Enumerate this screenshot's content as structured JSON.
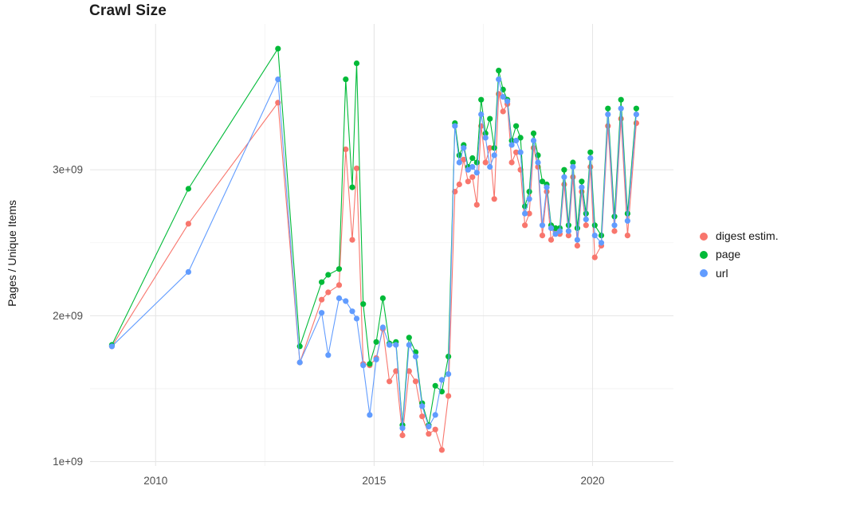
{
  "chart_data": {
    "type": "line",
    "title": "Crawl Size",
    "xlabel": "",
    "ylabel": "Pages / Unique Items",
    "grid": true,
    "legend_position": "right",
    "xlim": [
      2008.5,
      2021.85
    ],
    "ylim": [
      970000000.0,
      4000000000.0
    ],
    "x_ticks": [
      {
        "value": 2010,
        "label": "2010"
      },
      {
        "value": 2015,
        "label": "2015"
      },
      {
        "value": 2020,
        "label": "2020"
      }
    ],
    "x_minor_ticks": [
      2012.5,
      2017.5
    ],
    "y_ticks": [
      {
        "value": 1000000000.0,
        "label": "1e+09"
      },
      {
        "value": 2000000000.0,
        "label": "2e+09"
      },
      {
        "value": 3000000000.0,
        "label": "3e+09"
      }
    ],
    "y_minor_ticks": [
      1500000000.0,
      2500000000.0,
      3500000000.0
    ],
    "style": {
      "grid_major_color": "#e4e4e4",
      "grid_minor_color": "#f2f2f2",
      "tick_label_color": "#4d4d4d",
      "title_color": "#1d1d1d",
      "point_radius": 3.6,
      "line_width": 1.1
    },
    "x": [
      2009.0,
      2010.75,
      2012.8,
      2013.3,
      2013.8,
      2013.95,
      2014.2,
      2014.35,
      2014.5,
      2014.6,
      2014.75,
      2014.9,
      2015.05,
      2015.2,
      2015.35,
      2015.5,
      2015.65,
      2015.8,
      2015.95,
      2016.1,
      2016.25,
      2016.4,
      2016.55,
      2016.7,
      2016.85,
      2016.95,
      2017.05,
      2017.15,
      2017.25,
      2017.35,
      2017.45,
      2017.55,
      2017.65,
      2017.75,
      2017.85,
      2017.95,
      2018.05,
      2018.15,
      2018.25,
      2018.35,
      2018.45,
      2018.55,
      2018.65,
      2018.75,
      2018.85,
      2018.95,
      2019.05,
      2019.15,
      2019.25,
      2019.35,
      2019.45,
      2019.55,
      2019.65,
      2019.75,
      2019.85,
      2019.95,
      2020.05,
      2020.2,
      2020.35,
      2020.5,
      2020.65,
      2020.8,
      2021.0
    ],
    "series": [
      {
        "name": "digest estim.",
        "color": "#F8766D",
        "values": [
          1790000000.0,
          2630000000.0,
          3460000000.0,
          1680000000.0,
          2110000000.0,
          2160000000.0,
          2210000000.0,
          3140000000.0,
          2520000000.0,
          3010000000.0,
          1670000000.0,
          1660000000.0,
          1710000000.0,
          1910000000.0,
          1550000000.0,
          1620000000.0,
          1180000000.0,
          1620000000.0,
          1550000000.0,
          1310000000.0,
          1190000000.0,
          1220000000.0,
          1080000000.0,
          1450000000.0,
          2850000000.0,
          2900000000.0,
          3070000000.0,
          2920000000.0,
          2950000000.0,
          2760000000.0,
          3300000000.0,
          3050000000.0,
          3150000000.0,
          2800000000.0,
          3520000000.0,
          3400000000.0,
          3450000000.0,
          3050000000.0,
          3120000000.0,
          3000000000.0,
          2620000000.0,
          2700000000.0,
          3150000000.0,
          3020000000.0,
          2550000000.0,
          2850000000.0,
          2520000000.0,
          2580000000.0,
          2560000000.0,
          2900000000.0,
          2550000000.0,
          2950000000.0,
          2480000000.0,
          2850000000.0,
          2620000000.0,
          3020000000.0,
          2400000000.0,
          2480000000.0,
          3300000000.0,
          2580000000.0,
          3350000000.0,
          2550000000.0,
          3320000000.0
        ]
      },
      {
        "name": "page",
        "color": "#00BA38",
        "values": [
          1800000000.0,
          2870000000.0,
          3830000000.0,
          1790000000.0,
          2230000000.0,
          2280000000.0,
          2320000000.0,
          3620000000.0,
          2880000000.0,
          3730000000.0,
          2080000000.0,
          1670000000.0,
          1820000000.0,
          2120000000.0,
          1810000000.0,
          1820000000.0,
          1250000000.0,
          1850000000.0,
          1750000000.0,
          1400000000.0,
          1250000000.0,
          1520000000.0,
          1480000000.0,
          1720000000.0,
          3320000000.0,
          3100000000.0,
          3170000000.0,
          3020000000.0,
          3080000000.0,
          3050000000.0,
          3480000000.0,
          3250000000.0,
          3350000000.0,
          3150000000.0,
          3680000000.0,
          3550000000.0,
          3480000000.0,
          3200000000.0,
          3300000000.0,
          3220000000.0,
          2750000000.0,
          2850000000.0,
          3250000000.0,
          3100000000.0,
          2920000000.0,
          2900000000.0,
          2620000000.0,
          2600000000.0,
          2600000000.0,
          3000000000.0,
          2620000000.0,
          3050000000.0,
          2600000000.0,
          2920000000.0,
          2700000000.0,
          3120000000.0,
          2620000000.0,
          2550000000.0,
          3420000000.0,
          2680000000.0,
          3480000000.0,
          2700000000.0,
          3420000000.0
        ]
      },
      {
        "name": "url",
        "color": "#619CFF",
        "values": [
          1790000000.0,
          2300000000.0,
          3620000000.0,
          1680000000.0,
          2020000000.0,
          1730000000.0,
          2120000000.0,
          2100000000.0,
          2030000000.0,
          1980000000.0,
          1660000000.0,
          1320000000.0,
          1700000000.0,
          1920000000.0,
          1800000000.0,
          1800000000.0,
          1230000000.0,
          1800000000.0,
          1720000000.0,
          1380000000.0,
          1240000000.0,
          1320000000.0,
          1560000000.0,
          1600000000.0,
          3300000000.0,
          3050000000.0,
          3150000000.0,
          3000000000.0,
          3020000000.0,
          2980000000.0,
          3380000000.0,
          3220000000.0,
          3020000000.0,
          3100000000.0,
          3620000000.0,
          3500000000.0,
          3470000000.0,
          3170000000.0,
          3200000000.0,
          3120000000.0,
          2700000000.0,
          2800000000.0,
          3200000000.0,
          3050000000.0,
          2620000000.0,
          2880000000.0,
          2600000000.0,
          2560000000.0,
          2580000000.0,
          2950000000.0,
          2580000000.0,
          3020000000.0,
          2520000000.0,
          2880000000.0,
          2660000000.0,
          3080000000.0,
          2550000000.0,
          2500000000.0,
          3380000000.0,
          2620000000.0,
          3420000000.0,
          2650000000.0,
          3380000000.0
        ]
      }
    ]
  }
}
